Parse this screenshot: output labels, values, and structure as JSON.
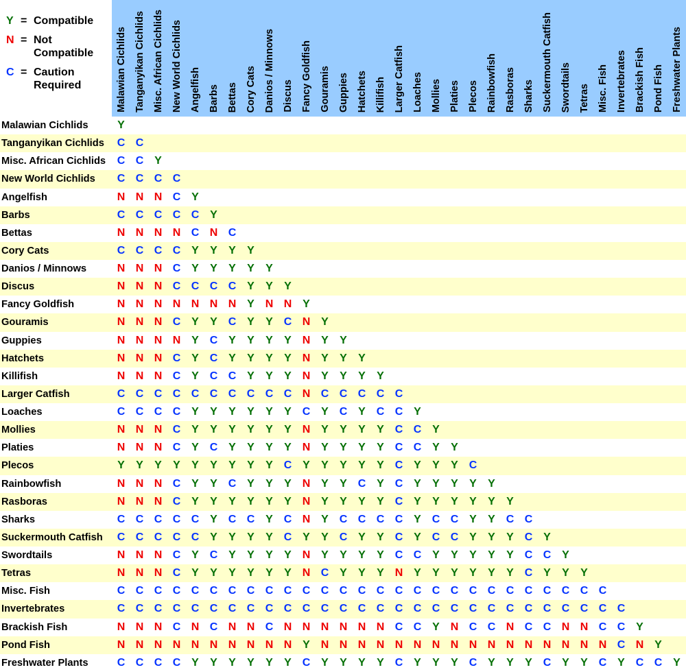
{
  "colors": {
    "Y": "#067006",
    "N": "#ee0000",
    "C": "#0533ff",
    "header_bg": "#99ccff",
    "row_alt_bg": "#ffffcc",
    "text": "#000000"
  },
  "legend": {
    "equals_sign": "=",
    "items": [
      {
        "symbol": "Y",
        "meaning_lines": [
          "Compatible"
        ]
      },
      {
        "symbol": "N",
        "meaning_lines": [
          "Not",
          "Compatible"
        ]
      },
      {
        "symbol": "C",
        "meaning_lines": [
          "Caution",
          "Required"
        ]
      }
    ]
  },
  "chart_data": {
    "type": "heatmap",
    "value_meanings": {
      "Y": "Compatible",
      "N": "Not Compatible",
      "C": "Caution Required"
    },
    "categories": [
      "Malawian Cichlids",
      "Tanganyikan Cichlids",
      "Misc. African Cichlids",
      "New World Cichlids",
      "Angelfish",
      "Barbs",
      "Bettas",
      "Cory Cats",
      "Danios / Minnows",
      "Discus",
      "Fancy Goldfish",
      "Gouramis",
      "Guppies",
      "Hatchets",
      "Killifish",
      "Larger Catfish",
      "Loaches",
      "Mollies",
      "Platies",
      "Plecos",
      "Rainbowfish",
      "Rasboras",
      "Sharks",
      "Suckermouth Catfish",
      "Swordtails",
      "Tetras",
      "Misc. Fish",
      "Invertebrates",
      "Brackish Fish",
      "Pond Fish",
      "Freshwater Plants"
    ],
    "rows": [
      "Y",
      "CC",
      "CCY",
      "CCCC",
      "NNNCY",
      "CCCCCY",
      "NNNNCNC",
      "CCCCYYYY",
      "NNNCYYYYY",
      "NNNCCCCYYY",
      "NNNNNNNYNNY",
      "NNNCYYCYYCNY",
      "NNNNYCYYYYNYY",
      "NNNCYCYYYYNYYY",
      "NNNCYCCYYYNYYYY",
      "CCCCCCCCCCNCCCCC",
      "CCCCYYYYYYCYCYCCY",
      "NNNCYYYYYYNYYYYCCY",
      "NNNCYCYYYYNYYYYCCYY",
      "YYYYYYYYYCYYYYYCYYYC",
      "NNNCYYCYYYNYYCYCYYYYY",
      "NNNCYYYYYYNYYYYCYYYYYY",
      "CCCCCYCCYCNYCCCCYCCYYCC",
      "CCCCCYYYYCYYCYYCYCCYYYCY",
      "NNNCYCYYYYNYYYYCCYYYYYCCY",
      "NNNCYYYYYYNCYYYNYYYYYYCYYY",
      "CCCCCCCCCCCCCCCCCCCCCCCCCCC",
      "CCCCCCCCCCCCCCCCCCCCCCCCCCCC",
      "NNNCNCNNCNNNNNNCCYNCCNCCNNCCY",
      "NNNNNNNNNNYNNNNNNNNNNNNNNNNCNY",
      "CCCCYYYYYYCYYYYCYYYCYYYCYYCYCCY"
    ]
  }
}
